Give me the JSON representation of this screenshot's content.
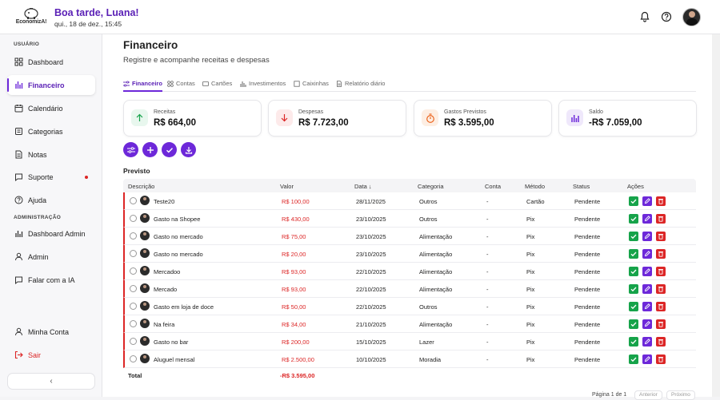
{
  "header": {
    "logo_text": "EconomizA!",
    "greeting": "Boa tarde, Luana!",
    "date": "qui., 18 de dez., 15:45",
    "icons": [
      "bell-icon",
      "help-icon"
    ]
  },
  "sidebar": {
    "section_user": "USUÁRIO",
    "section_admin": "ADMINISTRAÇÃO",
    "items": [
      {
        "label": "Dashboard",
        "icon": "grid-icon"
      },
      {
        "label": "Financeiro",
        "icon": "bar-chart-icon",
        "active": true
      },
      {
        "label": "Calendário",
        "icon": "calendar-icon"
      },
      {
        "label": "Categorias",
        "icon": "tag-icon"
      },
      {
        "label": "Notas",
        "icon": "note-icon"
      },
      {
        "label": "Suporte",
        "icon": "chat-icon",
        "badge": true
      },
      {
        "label": "Ajuda",
        "icon": "help-icon"
      }
    ],
    "admin_items": [
      {
        "label": "Dashboard Admin",
        "icon": "bar-chart-icon"
      },
      {
        "label": "Admin",
        "icon": "user-icon"
      },
      {
        "label": "Falar com a IA",
        "icon": "chat-icon"
      }
    ],
    "account": "Minha Conta",
    "logout": "Sair",
    "collapse": "‹"
  },
  "page": {
    "title": "Financeiro",
    "description": "Registre e acompanhe receitas e despesas"
  },
  "tabs": [
    "Financeiro",
    "Contas",
    "Cartões",
    "Investimentos",
    "Caixinhas",
    "Relatório diário"
  ],
  "cards": [
    {
      "label": "Receitas",
      "value": "R$ 664,00",
      "color": "#16a34a"
    },
    {
      "label": "Despesas",
      "value": "R$ 7.723,00",
      "color": "#dc2626"
    },
    {
      "label": "Gastos Previstos",
      "value": "R$ 3.595,00",
      "color": "#ea580c"
    },
    {
      "label": "Saldo",
      "value": "-R$ 7.059,00",
      "color": "#6d28d9"
    }
  ],
  "section": "Previsto",
  "columns": [
    "Descrição",
    "Valor",
    "Data ↓",
    "Categoria",
    "Conta",
    "Método",
    "Status",
    "Ações"
  ],
  "rows": [
    {
      "desc": "Teste20",
      "valor": "R$ 100,00",
      "data": "28/11/2025",
      "cat": "Outros",
      "conta": "-",
      "metodo": "Cartão",
      "status": "Pendente"
    },
    {
      "desc": "Gasto na Shopee",
      "valor": "R$ 430,00",
      "data": "23/10/2025",
      "cat": "Outros",
      "conta": "-",
      "metodo": "Pix",
      "status": "Pendente"
    },
    {
      "desc": "Gasto no mercado",
      "valor": "R$ 75,00",
      "data": "23/10/2025",
      "cat": "Alimentação",
      "conta": "-",
      "metodo": "Pix",
      "status": "Pendente"
    },
    {
      "desc": "Gasto no mercado",
      "valor": "R$ 20,00",
      "data": "23/10/2025",
      "cat": "Alimentação",
      "conta": "-",
      "metodo": "Pix",
      "status": "Pendente"
    },
    {
      "desc": "Mercadoo",
      "valor": "R$ 93,00",
      "data": "22/10/2025",
      "cat": "Alimentação",
      "conta": "-",
      "metodo": "Pix",
      "status": "Pendente"
    },
    {
      "desc": "Mercado",
      "valor": "R$ 93,00",
      "data": "22/10/2025",
      "cat": "Alimentação",
      "conta": "-",
      "metodo": "Pix",
      "status": "Pendente"
    },
    {
      "desc": "Gasto em loja de doce",
      "valor": "R$ 50,00",
      "data": "22/10/2025",
      "cat": "Outros",
      "conta": "-",
      "metodo": "Pix",
      "status": "Pendente"
    },
    {
      "desc": "Na feira",
      "valor": "R$ 34,00",
      "data": "21/10/2025",
      "cat": "Alimentação",
      "conta": "-",
      "metodo": "Pix",
      "status": "Pendente"
    },
    {
      "desc": "Gasto no bar",
      "valor": "R$ 200,00",
      "data": "15/10/2025",
      "cat": "Lazer",
      "conta": "-",
      "metodo": "Pix",
      "status": "Pendente"
    },
    {
      "desc": "Aluguel mensal",
      "valor": "R$ 2.500,00",
      "data": "10/10/2025",
      "cat": "Moradia",
      "conta": "-",
      "metodo": "Pix",
      "status": "Pendente"
    }
  ],
  "total": {
    "label": "Total",
    "value": "-R$ 3.595,00"
  },
  "pagination": {
    "info": "Página 1 de 1",
    "prev": "Anterior",
    "next": "Próximo"
  }
}
